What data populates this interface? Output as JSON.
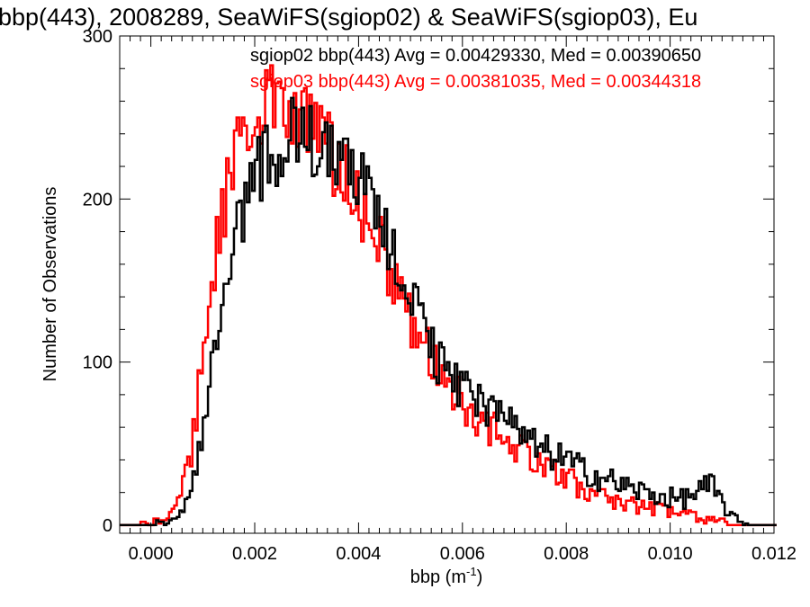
{
  "chart_data": {
    "type": "line",
    "subtype": "histogram-step",
    "title": "bbp(443), 2008289, SeaWiFS(sgiop02) & SeaWiFS(sgiop03), Eu",
    "xlabel": "bbp (m",
    "xlabel_superscript": "-1",
    "xlabel_close": ")",
    "ylabel": "Number of Observations",
    "xlim": [
      -0.0006,
      0.012
    ],
    "ylim": [
      -5,
      300
    ],
    "xticks": [
      0.0,
      0.002,
      0.004,
      0.006,
      0.008,
      0.01,
      0.012
    ],
    "xtick_labels": [
      "0.000",
      "0.002",
      "0.004",
      "0.006",
      "0.008",
      "0.010",
      "0.012"
    ],
    "yticks": [
      0,
      100,
      200,
      300
    ],
    "ytick_labels": [
      "0",
      "100",
      "200",
      "300"
    ],
    "grid": false,
    "legend_position": "top-right",
    "series": [
      {
        "name": "sgiop02",
        "color": "#000000",
        "legend_text": "sgiop02 bbp(443) Avg = 0.00429330, Med = 0.00390650",
        "avg": 0.0042933,
        "median": 0.0039065,
        "profile": [
          [
            0.0,
            0
          ],
          [
            0.0002,
            1
          ],
          [
            0.0004,
            3
          ],
          [
            0.0006,
            8
          ],
          [
            0.0008,
            30
          ],
          [
            0.001,
            60
          ],
          [
            0.0012,
            95
          ],
          [
            0.0014,
            140
          ],
          [
            0.0016,
            170
          ],
          [
            0.0018,
            200
          ],
          [
            0.002,
            215
          ],
          [
            0.0022,
            225
          ],
          [
            0.0024,
            230
          ],
          [
            0.0026,
            235
          ],
          [
            0.0028,
            240
          ],
          [
            0.003,
            238
          ],
          [
            0.0032,
            235
          ],
          [
            0.0034,
            237
          ],
          [
            0.0036,
            232
          ],
          [
            0.0038,
            225
          ],
          [
            0.004,
            215
          ],
          [
            0.0042,
            205
          ],
          [
            0.0044,
            190
          ],
          [
            0.0046,
            175
          ],
          [
            0.0048,
            158
          ],
          [
            0.005,
            140
          ],
          [
            0.0052,
            125
          ],
          [
            0.0054,
            110
          ],
          [
            0.0056,
            98
          ],
          [
            0.0058,
            88
          ],
          [
            0.006,
            82
          ],
          [
            0.0062,
            78
          ],
          [
            0.0064,
            72
          ],
          [
            0.0066,
            68
          ],
          [
            0.0068,
            63
          ],
          [
            0.007,
            58
          ],
          [
            0.0072,
            53
          ],
          [
            0.0074,
            48
          ],
          [
            0.0076,
            45
          ],
          [
            0.0078,
            42
          ],
          [
            0.008,
            40
          ],
          [
            0.0082,
            36
          ],
          [
            0.0084,
            33
          ],
          [
            0.0086,
            30
          ],
          [
            0.0088,
            28
          ],
          [
            0.009,
            25
          ],
          [
            0.0092,
            23
          ],
          [
            0.0094,
            21
          ],
          [
            0.0096,
            19
          ],
          [
            0.0098,
            18
          ],
          [
            0.01,
            17
          ],
          [
            0.0102,
            16
          ],
          [
            0.0104,
            18
          ],
          [
            0.0106,
            22
          ],
          [
            0.0108,
            24
          ],
          [
            0.011,
            14
          ],
          [
            0.0112,
            5
          ],
          [
            0.0114,
            1
          ],
          [
            0.0116,
            0
          ]
        ]
      },
      {
        "name": "sgiop03",
        "color": "#ff0000",
        "legend_text": "sgiop03 bbp(443) Avg = 0.00381035, Med = 0.00344318",
        "avg": 0.00381035,
        "median": 0.00344318,
        "profile": [
          [
            -0.0002,
            0
          ],
          [
            0.0,
            1
          ],
          [
            0.0002,
            3
          ],
          [
            0.0004,
            7
          ],
          [
            0.0006,
            20
          ],
          [
            0.0008,
            50
          ],
          [
            0.001,
            100
          ],
          [
            0.0012,
            155
          ],
          [
            0.0014,
            195
          ],
          [
            0.0016,
            225
          ],
          [
            0.0018,
            240
          ],
          [
            0.002,
            250
          ],
          [
            0.0022,
            255
          ],
          [
            0.0024,
            258
          ],
          [
            0.0026,
            255
          ],
          [
            0.0028,
            250
          ],
          [
            0.003,
            245
          ],
          [
            0.0032,
            238
          ],
          [
            0.0034,
            230
          ],
          [
            0.0036,
            222
          ],
          [
            0.0038,
            210
          ],
          [
            0.004,
            198
          ],
          [
            0.0042,
            185
          ],
          [
            0.0044,
            170
          ],
          [
            0.0046,
            155
          ],
          [
            0.0048,
            140
          ],
          [
            0.005,
            125
          ],
          [
            0.0052,
            112
          ],
          [
            0.0054,
            100
          ],
          [
            0.0056,
            90
          ],
          [
            0.0058,
            82
          ],
          [
            0.006,
            75
          ],
          [
            0.0062,
            69
          ],
          [
            0.0064,
            63
          ],
          [
            0.0066,
            58
          ],
          [
            0.0068,
            53
          ],
          [
            0.007,
            48
          ],
          [
            0.0072,
            43
          ],
          [
            0.0074,
            39
          ],
          [
            0.0076,
            35
          ],
          [
            0.0078,
            32
          ],
          [
            0.008,
            28
          ],
          [
            0.0082,
            25
          ],
          [
            0.0084,
            22
          ],
          [
            0.0086,
            19
          ],
          [
            0.0088,
            17
          ],
          [
            0.009,
            15
          ],
          [
            0.0092,
            13
          ],
          [
            0.0094,
            12
          ],
          [
            0.0096,
            11
          ],
          [
            0.0098,
            10
          ],
          [
            0.01,
            9
          ],
          [
            0.0102,
            7
          ],
          [
            0.0104,
            5
          ],
          [
            0.0106,
            4
          ],
          [
            0.0108,
            3
          ],
          [
            0.011,
            1
          ],
          [
            0.0112,
            0
          ]
        ]
      }
    ]
  }
}
